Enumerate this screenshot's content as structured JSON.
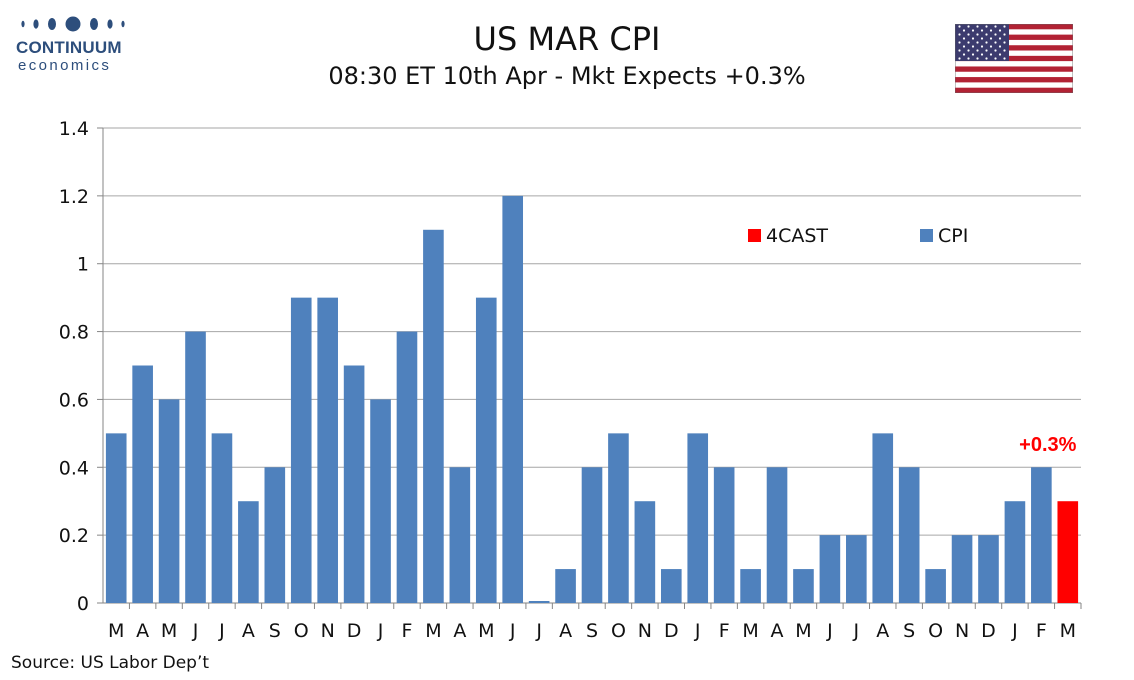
{
  "header": {
    "logo_name": "CONTINUUM",
    "logo_sub": "economics",
    "title": "US MAR CPI",
    "subtitle": "08:30 ET 10th Apr - Mkt Expects +0.3%",
    "flag_icon": "us-flag-icon"
  },
  "chart_data": {
    "type": "bar",
    "title": "US MAR CPI",
    "subtitle": "08:30 ET 10th Apr - Mkt Expects +0.3%",
    "xlabel": "",
    "ylabel": "",
    "ylim": [
      0,
      1.4
    ],
    "yticks": [
      "0",
      "0.2",
      "0.4",
      "0.6",
      "0.8",
      "1",
      "1.2",
      "1.4"
    ],
    "grid": true,
    "legend_position": "top-right",
    "categories": [
      "M",
      "A",
      "M",
      "J",
      "J",
      "A",
      "S",
      "O",
      "N",
      "D",
      "J",
      "F",
      "M",
      "A",
      "M",
      "J",
      "J",
      "A",
      "S",
      "O",
      "N",
      "D",
      "J",
      "F",
      "M",
      "A",
      "M",
      "J",
      "J",
      "A",
      "S",
      "O",
      "N",
      "D",
      "J",
      "F",
      "M"
    ],
    "series": [
      {
        "name": "CPI",
        "color": "#4f81bd",
        "values": [
          0.5,
          0.7,
          0.6,
          0.8,
          0.5,
          0.3,
          0.4,
          0.9,
          0.9,
          0.7,
          0.6,
          0.8,
          1.1,
          0.4,
          0.9,
          1.2,
          0.0,
          0.1,
          0.4,
          0.5,
          0.3,
          0.1,
          0.5,
          0.4,
          0.1,
          0.4,
          0.1,
          0.2,
          0.2,
          0.5,
          0.4,
          0.1,
          0.2,
          0.2,
          0.3,
          0.4,
          null
        ]
      },
      {
        "name": "4CAST",
        "color": "#ff0000",
        "values": [
          null,
          null,
          null,
          null,
          null,
          null,
          null,
          null,
          null,
          null,
          null,
          null,
          null,
          null,
          null,
          null,
          null,
          null,
          null,
          null,
          null,
          null,
          null,
          null,
          null,
          null,
          null,
          null,
          null,
          null,
          null,
          null,
          null,
          null,
          null,
          null,
          0.3
        ]
      }
    ],
    "annotations": [
      {
        "text": "+0.3%",
        "category_index": 36,
        "color": "#ff0000"
      }
    ]
  },
  "footer": {
    "source": "Source: US Labor Dep’t"
  }
}
